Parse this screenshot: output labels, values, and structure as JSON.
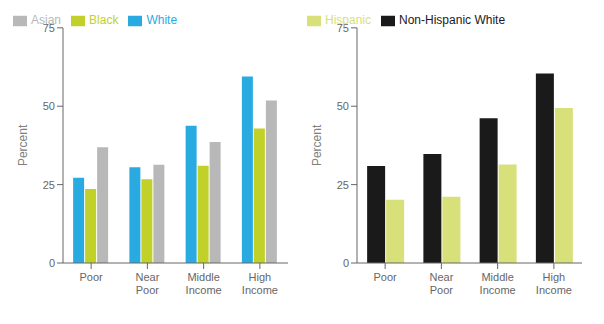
{
  "chart_data": [
    {
      "type": "bar",
      "categories": [
        "Poor",
        "Near\nPoor",
        "Middle\nIncome",
        "High\nIncome"
      ],
      "series": [
        {
          "name": "White",
          "color": "#29abe2",
          "values": [
            27.2,
            30.5,
            43.8,
            59.5
          ]
        },
        {
          "name": "Black",
          "color": "#c1d12a",
          "values": [
            23.6,
            26.7,
            31.0,
            42.9
          ]
        },
        {
          "name": "Asian",
          "color": "#b8b8b8",
          "values": [
            36.9,
            31.3,
            38.6,
            51.8
          ]
        }
      ],
      "ylabel": "Percent",
      "ylim": [
        0,
        75
      ],
      "yticks": [
        0,
        25,
        50,
        75
      ],
      "grid": false,
      "legend": "upper left"
    },
    {
      "type": "bar",
      "categories": [
        "Poor",
        "Near\nPoor",
        "Middle\nIncome",
        "High\nIncome"
      ],
      "series": [
        {
          "name": "Non-Hispanic White",
          "color": "#1a1a1a",
          "values": [
            30.9,
            34.8,
            46.2,
            60.4
          ]
        },
        {
          "name": "Hispanic",
          "color": "#d8e07a",
          "values": [
            20.2,
            21.1,
            31.4,
            49.4
          ]
        }
      ],
      "ylabel": "Percent",
      "ylim": [
        0,
        75
      ],
      "yticks": [
        0,
        25,
        50,
        75
      ],
      "grid": false,
      "legend": "upper left"
    }
  ]
}
